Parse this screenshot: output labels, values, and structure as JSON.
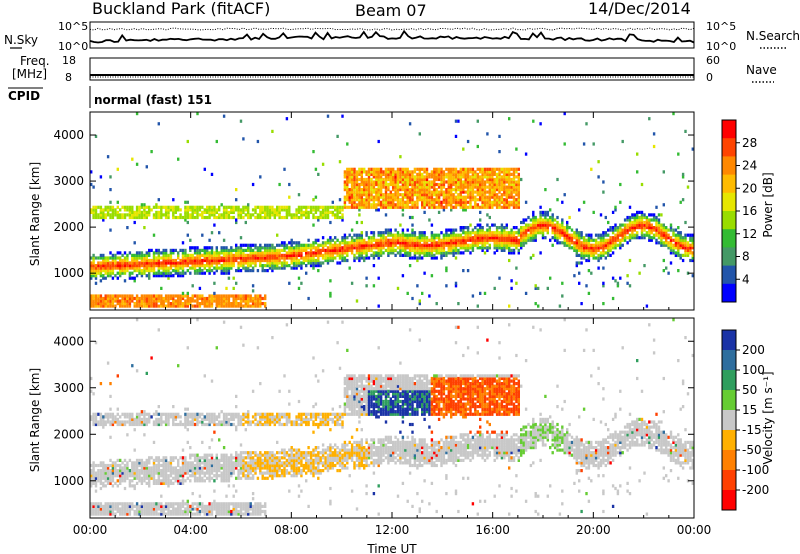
{
  "header": {
    "station": "Buckland Park (fitACF)",
    "beam": "Beam 07",
    "date": "14/Dec/2014"
  },
  "noise_panel": {
    "left_label": "N.Sky",
    "right_label": "N.Search",
    "left_ticks": [
      "10^5",
      "10^0"
    ],
    "right_ticks": [
      "10^5",
      "10^0"
    ]
  },
  "freq_panel": {
    "left_label_1": "Freq.",
    "left_label_2": "[MHz]",
    "right_label": "Nave",
    "left_ticks": [
      "18",
      "8"
    ],
    "right_ticks": [
      "60",
      "0"
    ]
  },
  "cpid": {
    "label": "CPID",
    "value": "normal (fast) 151"
  },
  "chart_data": [
    {
      "type": "heatmap",
      "ylabel": "Slant Range [km]",
      "xlabel": "Time UT",
      "y_ticks": [
        1000,
        2000,
        3000,
        4000
      ],
      "ylim": [
        200,
        4500
      ],
      "x_ticks": [
        "00:00",
        "04:00",
        "08:00",
        "12:00",
        "16:00",
        "20:00",
        "00:00"
      ],
      "colorbar": {
        "label": "Power [dB]",
        "ticks": [
          "28",
          "24",
          "20",
          "16",
          "12",
          "8",
          "4"
        ],
        "colors": [
          "#ff0000",
          "#ff4400",
          "#ff8800",
          "#ffbb00",
          "#e6e600",
          "#99dd00",
          "#33bb33",
          "#449966",
          "#2255aa",
          "#0000ff"
        ]
      }
    },
    {
      "type": "heatmap",
      "ylabel": "Slant Range [km]",
      "xlabel": "Time UT",
      "y_ticks": [
        1000,
        2000,
        3000,
        4000
      ],
      "ylim": [
        200,
        4500
      ],
      "x_ticks": [
        "00:00",
        "04:00",
        "08:00",
        "12:00",
        "16:00",
        "20:00",
        "00:00"
      ],
      "colorbar": {
        "label": "Velocity [m s⁻¹]",
        "ticks": [
          "200",
          "100",
          "50",
          "15",
          "-15",
          "-50",
          "-100",
          "-200"
        ],
        "colors": [
          "#1a33a6",
          "#2e6e9e",
          "#2f9e5e",
          "#66cc33",
          "#c8c8c8",
          "#ffb000",
          "#ff8000",
          "#ff4000",
          "#ff0000"
        ]
      }
    }
  ]
}
